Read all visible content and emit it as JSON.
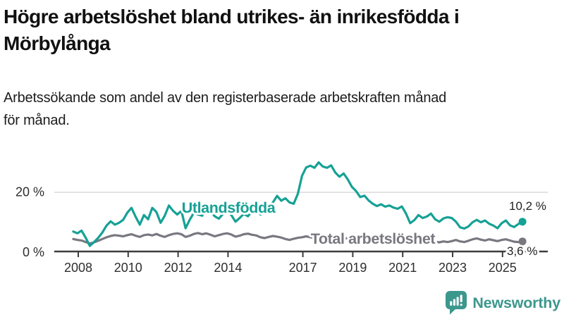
{
  "header": {
    "title": "Högre arbetslöshet bland utrikes- än inrikesfödda i\nMörbylånga",
    "subtitle": "Arbetssökande som andel av den registerbaserade arbetskraften månad\nför månad."
  },
  "chart_data": {
    "type": "line",
    "title": "Högre arbetslöshet bland utrikes- än inrikesfödda i Mörbylånga",
    "subtitle": "Arbetssökande som andel av den registerbaserade arbetskraften månad för månad.",
    "unit": "%",
    "x_start": 2007.8,
    "x_step": 0.1666667,
    "xlim": [
      2007.8,
      2025.8
    ],
    "ylim": [
      0,
      32
    ],
    "grid": "horizontal-20-only",
    "legend": "inline-labels",
    "x_ticks": [
      2008,
      2010,
      2012,
      2014,
      2017,
      2019,
      2021,
      2023,
      2025
    ],
    "y_ticks": [
      {
        "value": 0,
        "label": "0 %"
      },
      {
        "value": 20,
        "label": "20 %"
      }
    ],
    "series": [
      {
        "name": "Utlandsfödda",
        "color": "#16a195",
        "end_value": 10.2,
        "end_label": "10,2 %",
        "values": [
          6.9,
          6.3,
          7.2,
          4.8,
          2.1,
          3.4,
          4.8,
          6.6,
          8.9,
          10.3,
          9.2,
          9.8,
          10.8,
          13.2,
          14.8,
          11.8,
          9.2,
          12.4,
          11.0,
          14.8,
          13.4,
          9.8,
          12.2,
          15.6,
          13.8,
          12.6,
          13.8,
          8.0,
          10.8,
          13.2,
          12.6,
          12.2,
          15.2,
          13.8,
          12.0,
          11.2,
          12.8,
          14.0,
          12.4,
          10.2,
          11.4,
          12.8,
          12.0,
          13.6,
          14.2,
          12.6,
          13.4,
          15.0,
          16.6,
          18.8,
          17.2,
          18.0,
          16.6,
          16.2,
          19.5,
          25.5,
          28.3,
          28.9,
          28.2,
          30.0,
          28.6,
          28.2,
          29.0,
          26.6,
          25.2,
          26.3,
          24.3,
          21.8,
          20.4,
          18.4,
          18.9,
          17.3,
          16.2,
          15.4,
          16.0,
          15.2,
          15.6,
          14.9,
          14.5,
          15.3,
          12.9,
          9.7,
          10.7,
          12.4,
          11.4,
          11.9,
          12.9,
          11.0,
          10.2,
          11.3,
          11.7,
          11.4,
          10.2,
          8.3,
          7.9,
          8.6,
          10.0,
          10.8,
          10.0,
          10.6,
          9.5,
          8.9,
          8.0,
          9.7,
          10.6,
          9.0,
          8.4,
          9.4,
          10.2
        ]
      },
      {
        "name": "Total arbetslöshet",
        "color": "#797880",
        "end_value": 3.6,
        "end_label": "3,6 %",
        "values": [
          4.4,
          4.1,
          3.9,
          3.4,
          2.9,
          3.3,
          3.8,
          4.4,
          5.0,
          5.4,
          5.7,
          5.5,
          5.3,
          5.7,
          6.0,
          5.5,
          5.1,
          5.7,
          5.9,
          5.6,
          6.1,
          5.5,
          5.1,
          5.7,
          6.1,
          6.3,
          6.0,
          5.1,
          5.5,
          6.1,
          6.4,
          6.0,
          6.3,
          5.8,
          5.3,
          5.7,
          6.1,
          6.3,
          5.9,
          5.2,
          5.5,
          6.0,
          6.2,
          5.8,
          5.6,
          5.0,
          4.7,
          5.1,
          5.4,
          5.2,
          4.9,
          4.4,
          4.1,
          4.5,
          4.8,
          5.0,
          5.3,
          5.0,
          4.7,
          5.1,
          5.3,
          5.1,
          4.9,
          4.4,
          4.2,
          4.5,
          4.7,
          4.4,
          4.2,
          3.9,
          4.1,
          4.4,
          4.2,
          4.5,
          5.0,
          5.3,
          5.1,
          4.8,
          4.6,
          4.4,
          4.2,
          3.9,
          3.7,
          4.0,
          4.2,
          4.0,
          3.8,
          3.5,
          3.3,
          3.6,
          3.4,
          3.7,
          4.1,
          3.6,
          3.4,
          3.8,
          4.3,
          4.6,
          4.2,
          3.9,
          4.3,
          4.0,
          3.7,
          4.1,
          4.3,
          3.9,
          3.5,
          3.4,
          3.6
        ]
      }
    ]
  },
  "branding": {
    "logo_text": "Newsworthy",
    "logo_color": "#3c978d"
  }
}
